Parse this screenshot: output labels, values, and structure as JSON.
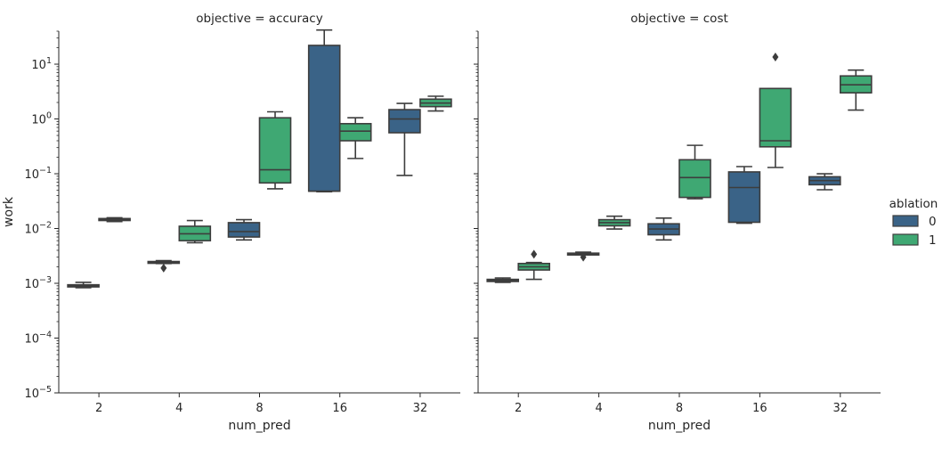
{
  "chart_data": {
    "type": "box",
    "ylabel": "work",
    "y_scale": "log",
    "ylim": [
      1e-05,
      40
    ],
    "y_ticks": [
      {
        "value": 1e-05,
        "base": "10",
        "exp": "−5"
      },
      {
        "value": 0.0001,
        "base": "10",
        "exp": "−4"
      },
      {
        "value": 0.001,
        "base": "10",
        "exp": "−3"
      },
      {
        "value": 0.01,
        "base": "10",
        "exp": "−2"
      },
      {
        "value": 0.1,
        "base": "10",
        "exp": "−1"
      },
      {
        "value": 1,
        "base": "10",
        "exp": "0"
      },
      {
        "value": 10,
        "base": "10",
        "exp": "1"
      }
    ],
    "xlabel": "num_pred",
    "categories": [
      "2",
      "4",
      "8",
      "16",
      "32"
    ],
    "legend": {
      "title": "ablation",
      "placement": "right",
      "entries": [
        {
          "label": "0",
          "color": "#3a6387"
        },
        {
          "label": "1",
          "color": "#3fa873"
        }
      ]
    },
    "series_colors": {
      "0": "#3a6387",
      "1": "#3fa873"
    },
    "panels": [
      {
        "title": "objective = accuracy",
        "boxes": [
          {
            "category": "2",
            "ablation": "0",
            "whislo": 0.00083,
            "q1": 0.00086,
            "med": 0.0009,
            "q3": 0.00094,
            "whishi": 0.00104,
            "fliers": []
          },
          {
            "category": "2",
            "ablation": "1",
            "whislo": 0.0134,
            "q1": 0.014,
            "med": 0.0146,
            "q3": 0.0152,
            "whishi": 0.0157,
            "fliers": []
          },
          {
            "category": "4",
            "ablation": "0",
            "whislo": 0.0023,
            "q1": 0.00235,
            "med": 0.0024,
            "q3": 0.0025,
            "whishi": 0.0026,
            "fliers": [
              0.0019
            ]
          },
          {
            "category": "4",
            "ablation": "1",
            "whislo": 0.0055,
            "q1": 0.006,
            "med": 0.008,
            "q3": 0.011,
            "whishi": 0.014,
            "fliers": []
          },
          {
            "category": "8",
            "ablation": "0",
            "whislo": 0.0062,
            "q1": 0.007,
            "med": 0.0088,
            "q3": 0.0128,
            "whishi": 0.0145,
            "fliers": []
          },
          {
            "category": "8",
            "ablation": "1",
            "whislo": 0.053,
            "q1": 0.068,
            "med": 0.118,
            "q3": 1.05,
            "whishi": 1.35,
            "fliers": []
          },
          {
            "category": "16",
            "ablation": "0",
            "whislo": 0.047,
            "q1": 0.048,
            "med": 0.048,
            "q3": 22,
            "whishi": 42,
            "fliers": []
          },
          {
            "category": "16",
            "ablation": "1",
            "whislo": 0.19,
            "q1": 0.4,
            "med": 0.6,
            "q3": 0.82,
            "whishi": 1.05,
            "fliers": []
          },
          {
            "category": "32",
            "ablation": "0",
            "whislo": 0.093,
            "q1": 0.56,
            "med": 1.0,
            "q3": 1.48,
            "whishi": 1.92,
            "fliers": []
          },
          {
            "category": "32",
            "ablation": "1",
            "whislo": 1.4,
            "q1": 1.68,
            "med": 1.95,
            "q3": 2.3,
            "whishi": 2.6,
            "fliers": []
          }
        ]
      },
      {
        "title": "objective = cost",
        "boxes": [
          {
            "category": "2",
            "ablation": "0",
            "whislo": 0.00104,
            "q1": 0.00108,
            "med": 0.00112,
            "q3": 0.00118,
            "whishi": 0.00125,
            "fliers": []
          },
          {
            "category": "2",
            "ablation": "1",
            "whislo": 0.00118,
            "q1": 0.00175,
            "med": 0.002,
            "q3": 0.0023,
            "whishi": 0.0024,
            "fliers": [
              0.0034
            ]
          },
          {
            "category": "4",
            "ablation": "0",
            "whislo": 0.0033,
            "q1": 0.00335,
            "med": 0.0034,
            "q3": 0.00355,
            "whishi": 0.0037,
            "fliers": [
              0.003
            ]
          },
          {
            "category": "4",
            "ablation": "1",
            "whislo": 0.0098,
            "q1": 0.0112,
            "med": 0.0128,
            "q3": 0.0145,
            "whishi": 0.0168,
            "fliers": []
          },
          {
            "category": "8",
            "ablation": "0",
            "whislo": 0.0062,
            "q1": 0.0077,
            "med": 0.0098,
            "q3": 0.0122,
            "whishi": 0.0155,
            "fliers": []
          },
          {
            "category": "8",
            "ablation": "1",
            "whislo": 0.035,
            "q1": 0.037,
            "med": 0.085,
            "q3": 0.18,
            "whishi": 0.33,
            "fliers": []
          },
          {
            "category": "16",
            "ablation": "0",
            "whislo": 0.0125,
            "q1": 0.013,
            "med": 0.056,
            "q3": 0.108,
            "whishi": 0.135,
            "fliers": []
          },
          {
            "category": "16",
            "ablation": "1",
            "whislo": 0.13,
            "q1": 0.31,
            "med": 0.4,
            "q3": 3.6,
            "whishi": 3.6,
            "fliers": [
              13.5
            ]
          },
          {
            "category": "32",
            "ablation": "0",
            "whislo": 0.051,
            "q1": 0.063,
            "med": 0.075,
            "q3": 0.088,
            "whishi": 0.1,
            "fliers": []
          },
          {
            "category": "32",
            "ablation": "1",
            "whislo": 1.45,
            "q1": 3.0,
            "med": 4.2,
            "q3": 6.1,
            "whishi": 7.8,
            "fliers": []
          }
        ]
      }
    ]
  }
}
